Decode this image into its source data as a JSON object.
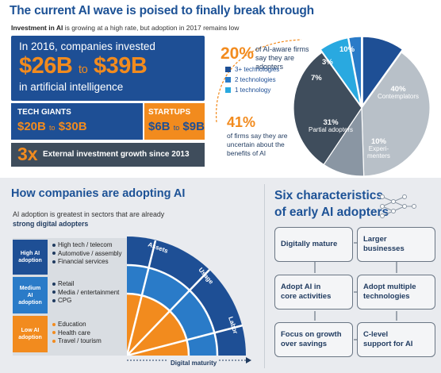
{
  "header": {
    "title": "The current AI wave is poised to finally break through",
    "subtitle_bold": "Investment in AI",
    "subtitle_rest": " is growing at a high rate, but adoption in 2017 remains low"
  },
  "investment": {
    "line1": "In 2016, companies invested",
    "amount_low": "$26B",
    "amount_to": "to",
    "amount_high": "$39B",
    "line3": "in artificial intelligence",
    "tech_giants_label": "TECH GIANTS",
    "tech_giants_low": "$20B",
    "tech_giants_to": "to",
    "tech_giants_high": "$30B",
    "startups_label": "STARTUPS",
    "startups_low": "$6B",
    "startups_to": "to",
    "startups_high": "$9B",
    "growth_multiplier": "3x",
    "growth_text": "External investment growth since 2013"
  },
  "adoption_stats": {
    "pct_aware": "20%",
    "aware_text": "of AI-aware firms say they are adopters",
    "legend": [
      {
        "label": "3+ technologies",
        "color": "#1e4f95"
      },
      {
        "label": "2 technologies",
        "color": "#2a7bc8"
      },
      {
        "label": "1 technology",
        "color": "#29a9e0"
      }
    ],
    "pct_uncertain": "41%",
    "uncertain_text": "of firms say they are uncertain about the benefits of AI",
    "pie": {
      "slices": [
        {
          "value": 10,
          "label": "10%",
          "sub": "",
          "color": "#1e4f95"
        },
        {
          "value": 40,
          "label": "40%",
          "sub": "Contemplators",
          "color": "#b8c0c8"
        },
        {
          "value": 10,
          "label": "10%",
          "sub": "Experi-menters",
          "color": "#8a96a3"
        },
        {
          "value": 31,
          "label": "31%",
          "sub": "Partial adopters",
          "color": "#3f4d5c"
        },
        {
          "value": 7,
          "label": "7%",
          "sub": "",
          "color": "#29a9e0"
        },
        {
          "value": 3,
          "label": "3%",
          "sub": "",
          "color": "#2a7bc8"
        }
      ],
      "sub_experimenters_1": "Experi-",
      "sub_experimenters_2": "menters"
    }
  },
  "how_adopting": {
    "title": "How companies are adopting AI",
    "sub_line1": "AI adoption is greatest in sectors that are already",
    "sub_line2_bold": "strong digital adopters",
    "rows": [
      {
        "label_1": "High AI",
        "label_2": "adoption",
        "color": "#1e4f95",
        "dot": "#1f3a5f",
        "items": [
          "High tech / telecom",
          "Automotive / assembly",
          "Financial services"
        ]
      },
      {
        "label_1": "Medium",
        "label_2": "AI",
        "label_3": "adoption",
        "color": "#2a7bc8",
        "dot": "#1f3a5f",
        "items": [
          "Retail",
          "Media / entertainment",
          "CPG"
        ]
      },
      {
        "label_1": "Low AI",
        "label_2": "adoption",
        "color": "#f28b1e",
        "dot": "#f28b1e",
        "items": [
          "Education",
          "Health care",
          "Travel / tourism"
        ]
      }
    ],
    "arc_labels": [
      "Assets",
      "Usage",
      "Labor"
    ],
    "axis_label": "Digital maturity"
  },
  "six_characteristics": {
    "title_line1": "Six characteristics",
    "title_line2": "of early AI adopters",
    "items": [
      {
        "line1": "Digitally mature",
        "line2": ""
      },
      {
        "line1": "Larger",
        "line2": "businesses"
      },
      {
        "line1": "Adopt AI in",
        "line2": "core activities"
      },
      {
        "line1": "Adopt multiple",
        "line2": "technologies"
      },
      {
        "line1": "Focus on growth",
        "line2": "over savings"
      },
      {
        "line1": "C-level",
        "line2": "support for AI"
      }
    ]
  },
  "colors": {
    "navy": "#1e4f95",
    "orange": "#f28b1e",
    "dark_gray": "#3f4d5c",
    "light_blue": "#29a9e0"
  }
}
